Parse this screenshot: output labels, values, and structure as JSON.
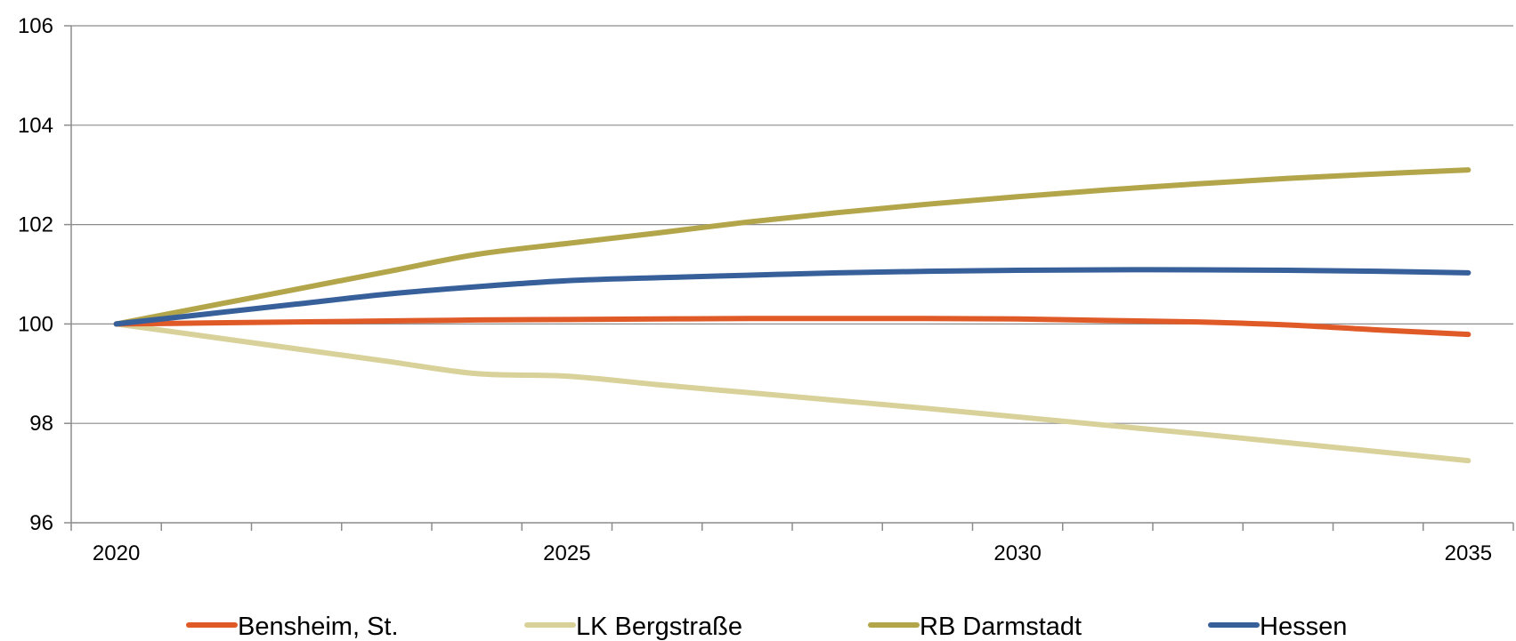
{
  "chart_data": {
    "type": "line",
    "x": [
      2020,
      2021,
      2022,
      2023,
      2024,
      2025,
      2026,
      2027,
      2028,
      2029,
      2030,
      2031,
      2032,
      2033,
      2034,
      2035
    ],
    "x_tick_labels": [
      "2020",
      "2025",
      "2030",
      "2035"
    ],
    "y_tick_labels": [
      "96",
      "98",
      "100",
      "102",
      "104",
      "106"
    ],
    "ylim": [
      96,
      106
    ],
    "xlim": [
      2019.5,
      2035.5
    ],
    "grid": true,
    "legend_position": "bottom",
    "title": "",
    "xlabel": "",
    "ylabel": "",
    "series": [
      {
        "name": "Bensheim, St.",
        "color": "#e05a28",
        "values": [
          100.0,
          100.02,
          100.04,
          100.06,
          100.08,
          100.09,
          100.1,
          100.11,
          100.11,
          100.11,
          100.1,
          100.07,
          100.04,
          99.98,
          99.88,
          99.79
        ]
      },
      {
        "name": "LK Bergstraße",
        "color": "#d9d19a",
        "values": [
          100.0,
          99.75,
          99.5,
          99.25,
          99.0,
          98.95,
          98.78,
          98.62,
          98.46,
          98.3,
          98.13,
          97.96,
          97.79,
          97.61,
          97.43,
          97.25
        ]
      },
      {
        "name": "RB Darmstadt",
        "color": "#b3a54a",
        "values": [
          100.0,
          100.35,
          100.7,
          101.05,
          101.4,
          101.62,
          101.83,
          102.05,
          102.24,
          102.41,
          102.56,
          102.7,
          102.82,
          102.93,
          103.02,
          103.1
        ]
      },
      {
        "name": "Hessen",
        "color": "#37609a",
        "values": [
          100.0,
          100.2,
          100.4,
          100.6,
          100.75,
          100.87,
          100.93,
          100.98,
          101.03,
          101.06,
          101.08,
          101.09,
          101.09,
          101.08,
          101.06,
          101.03
        ]
      }
    ]
  }
}
